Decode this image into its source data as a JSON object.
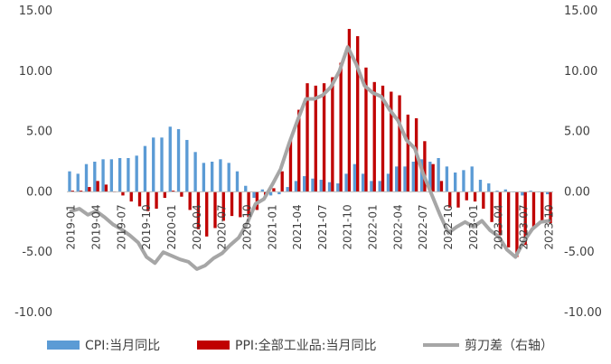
{
  "chart_data": {
    "type": "bar",
    "categories": [
      "2019-01",
      "2019-02",
      "2019-03",
      "2019-04",
      "2019-05",
      "2019-06",
      "2019-07",
      "2019-08",
      "2019-09",
      "2019-10",
      "2019-11",
      "2019-12",
      "2020-01",
      "2020-02",
      "2020-03",
      "2020-04",
      "2020-05",
      "2020-06",
      "2020-07",
      "2020-08",
      "2020-09",
      "2020-10",
      "2020-11",
      "2020-12",
      "2021-01",
      "2021-02",
      "2021-03",
      "2021-04",
      "2021-05",
      "2021-06",
      "2021-07",
      "2021-08",
      "2021-09",
      "2021-10",
      "2021-11",
      "2021-12",
      "2022-01",
      "2022-02",
      "2022-03",
      "2022-04",
      "2022-05",
      "2022-06",
      "2022-07",
      "2022-08",
      "2022-09",
      "2022-10",
      "2022-11",
      "2022-12",
      "2023-01",
      "2023-02",
      "2023-03",
      "2023-04",
      "2023-05",
      "2023-06",
      "2023-07",
      "2023-08",
      "2023-09",
      "2023-10"
    ],
    "tick_labels": [
      "2019-01",
      "2019-04",
      "2019-07",
      "2019-10",
      "2020-01",
      "2020-04",
      "2020-07",
      "2020-10",
      "2021-01",
      "2021-04",
      "2021-07",
      "2021-10",
      "2022-01",
      "2022-04",
      "2022-07",
      "2022-10",
      "2023-01",
      "2023-04",
      "2023-07",
      "2023-10"
    ],
    "series": [
      {
        "name": "CPI:当月同比",
        "type": "bar",
        "axis": "left",
        "color": "#5b9bd5",
        "values": [
          1.7,
          1.5,
          2.3,
          2.5,
          2.7,
          2.7,
          2.8,
          2.8,
          3.0,
          3.8,
          4.5,
          4.5,
          5.4,
          5.2,
          4.3,
          3.3,
          2.4,
          2.5,
          2.7,
          2.4,
          1.7,
          0.5,
          -0.5,
          0.2,
          -0.3,
          -0.2,
          0.4,
          0.9,
          1.3,
          1.1,
          1.0,
          0.8,
          0.7,
          1.5,
          2.3,
          1.5,
          0.9,
          0.9,
          1.5,
          2.1,
          2.1,
          2.5,
          2.7,
          2.5,
          2.8,
          2.1,
          1.6,
          1.8,
          2.1,
          1.0,
          0.7,
          0.1,
          0.2,
          0.0,
          -0.3,
          0.1,
          0.0,
          -0.2
        ]
      },
      {
        "name": "PPI:全部工业品:当月同比",
        "type": "bar",
        "axis": "left",
        "color": "#c00000",
        "values": [
          0.1,
          0.1,
          0.4,
          0.9,
          0.6,
          0.0,
          -0.3,
          -0.8,
          -1.2,
          -1.6,
          -1.4,
          -0.5,
          0.1,
          -0.4,
          -1.5,
          -3.1,
          -3.7,
          -3.0,
          -2.4,
          -2.0,
          -2.1,
          -2.1,
          -1.5,
          -0.4,
          0.3,
          1.7,
          4.4,
          6.8,
          9.0,
          8.8,
          9.0,
          9.5,
          10.7,
          13.5,
          12.9,
          10.3,
          9.1,
          8.8,
          8.3,
          8.0,
          6.4,
          6.1,
          4.2,
          2.3,
          0.9,
          -1.3,
          -1.3,
          -0.7,
          -0.8,
          -1.4,
          -2.5,
          -3.6,
          -4.6,
          -5.4,
          -4.4,
          -3.0,
          -2.5,
          -2.6
        ]
      },
      {
        "name": "剪刀差（右轴）",
        "type": "line",
        "axis": "right",
        "color": "#a6a6a6",
        "values": [
          -1.6,
          -1.4,
          -1.9,
          -1.6,
          -2.1,
          -2.7,
          -3.1,
          -3.6,
          -4.2,
          -5.4,
          -5.9,
          -5.0,
          -5.3,
          -5.6,
          -5.8,
          -6.4,
          -6.1,
          -5.5,
          -5.1,
          -4.4,
          -3.8,
          -2.6,
          -1.0,
          -0.6,
          0.6,
          1.9,
          4.0,
          5.9,
          7.7,
          7.7,
          8.0,
          8.7,
          10.0,
          12.0,
          10.6,
          8.8,
          8.2,
          7.9,
          6.8,
          5.9,
          4.3,
          3.6,
          1.5,
          -0.2,
          -1.9,
          -3.4,
          -2.9,
          -2.5,
          -2.9,
          -2.4,
          -3.2,
          -3.7,
          -4.8,
          -5.4,
          -4.1,
          -3.1,
          -2.5,
          -2.4
        ]
      }
    ],
    "y_ticks": [
      "15.00",
      "10.00",
      "5.00",
      "0.00",
      "-5.00",
      "-10.00"
    ],
    "y2_ticks": [
      "15.00",
      "10.00",
      "5.00",
      "0.00",
      "-5.00",
      "-10.00"
    ],
    "ylim": [
      -10,
      15
    ],
    "y2lim": [
      -10,
      15
    ],
    "grid": false,
    "legend_position": "bottom"
  }
}
